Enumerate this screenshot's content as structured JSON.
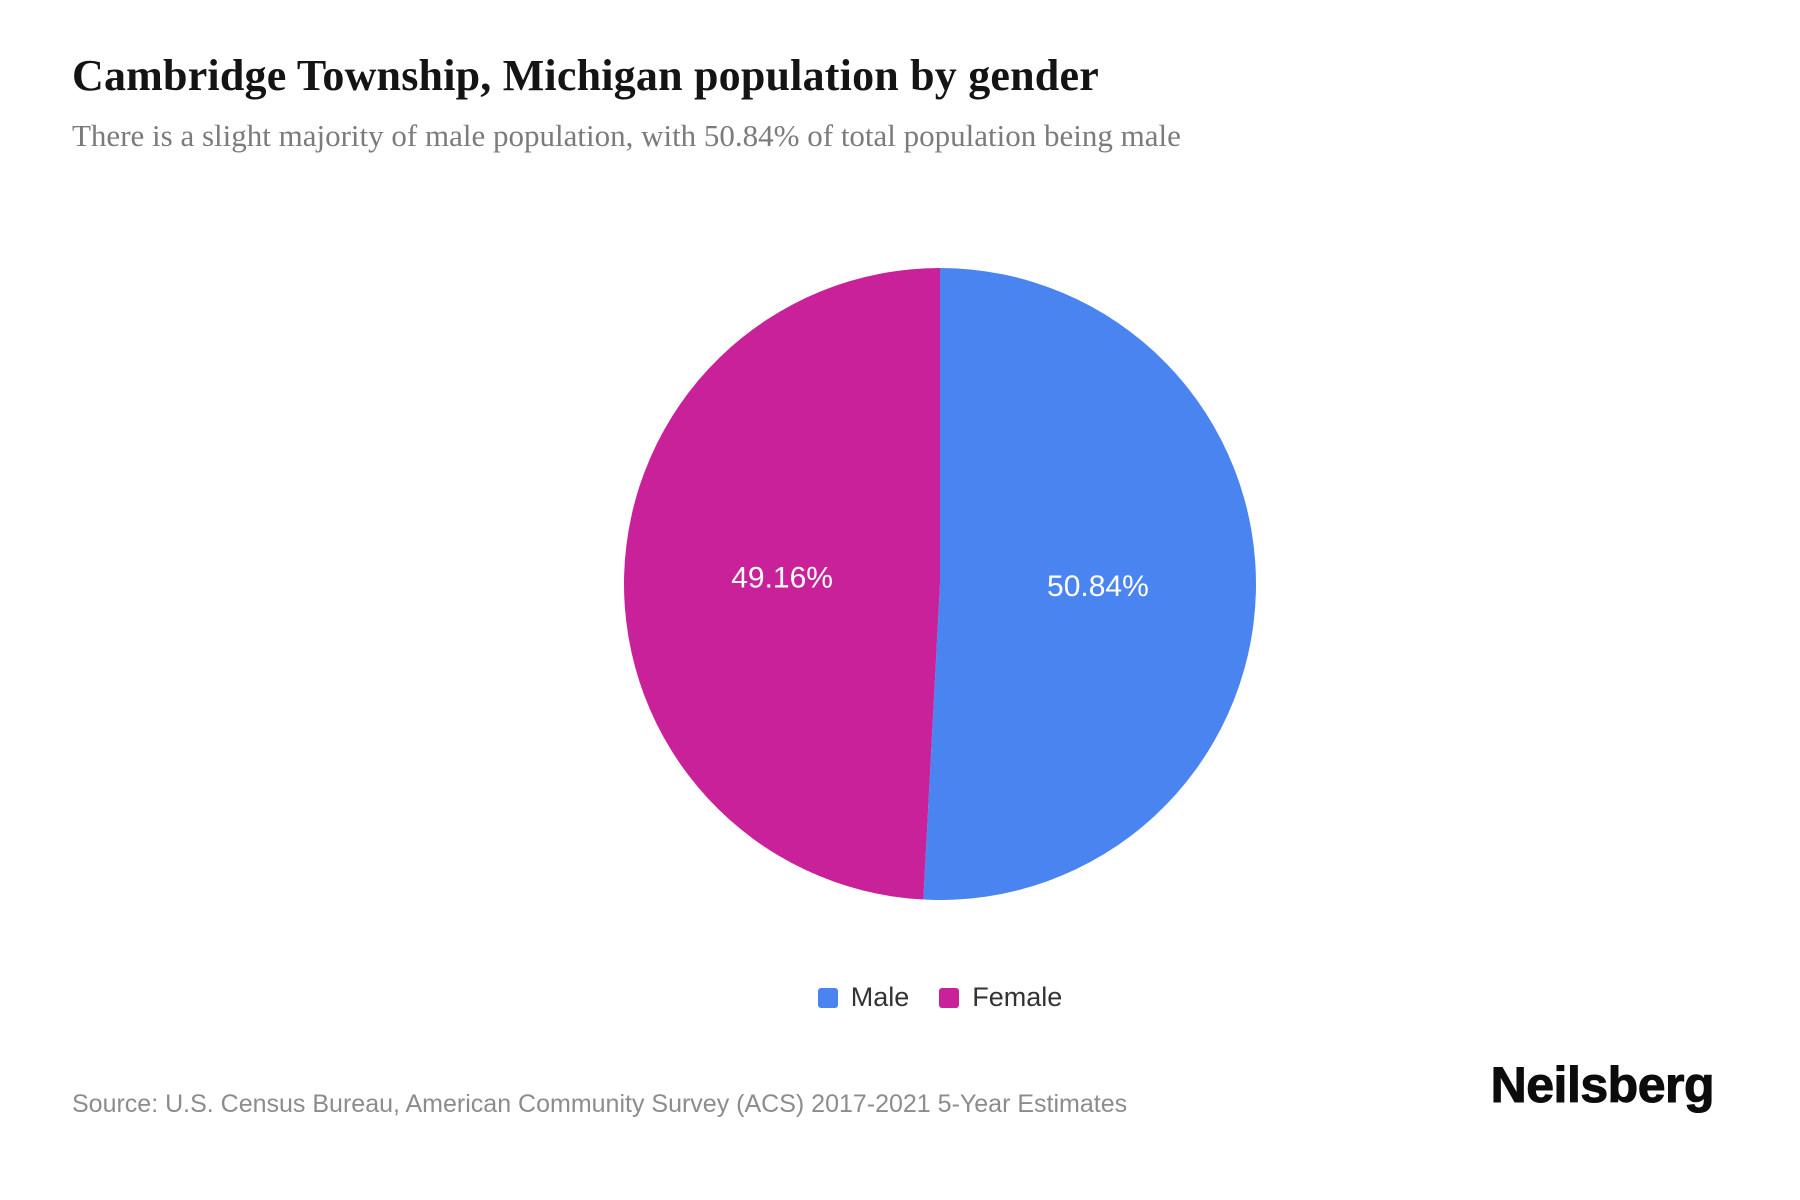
{
  "chart_data": {
    "type": "pie",
    "title": "Cambridge Township, Michigan population by gender",
    "subtitle": "There is a slight majority of male population, with 50.84% of total population being male",
    "series": [
      {
        "name": "Male",
        "value": 50.84,
        "label": "50.84%",
        "color": "#4a84f0"
      },
      {
        "name": "Female",
        "value": 49.16,
        "label": "49.16%",
        "color": "#c9219a"
      }
    ],
    "unit": "%",
    "start_angle_deg": 0,
    "direction": "clockwise",
    "slice_label_color": "#ffffff",
    "legend_position": "bottom",
    "source": "Source: U.S. Census Bureau, American Community Survey (ACS) 2017-2021 5-Year Estimates"
  },
  "brand": {
    "logo_text": "Neilsberg"
  }
}
